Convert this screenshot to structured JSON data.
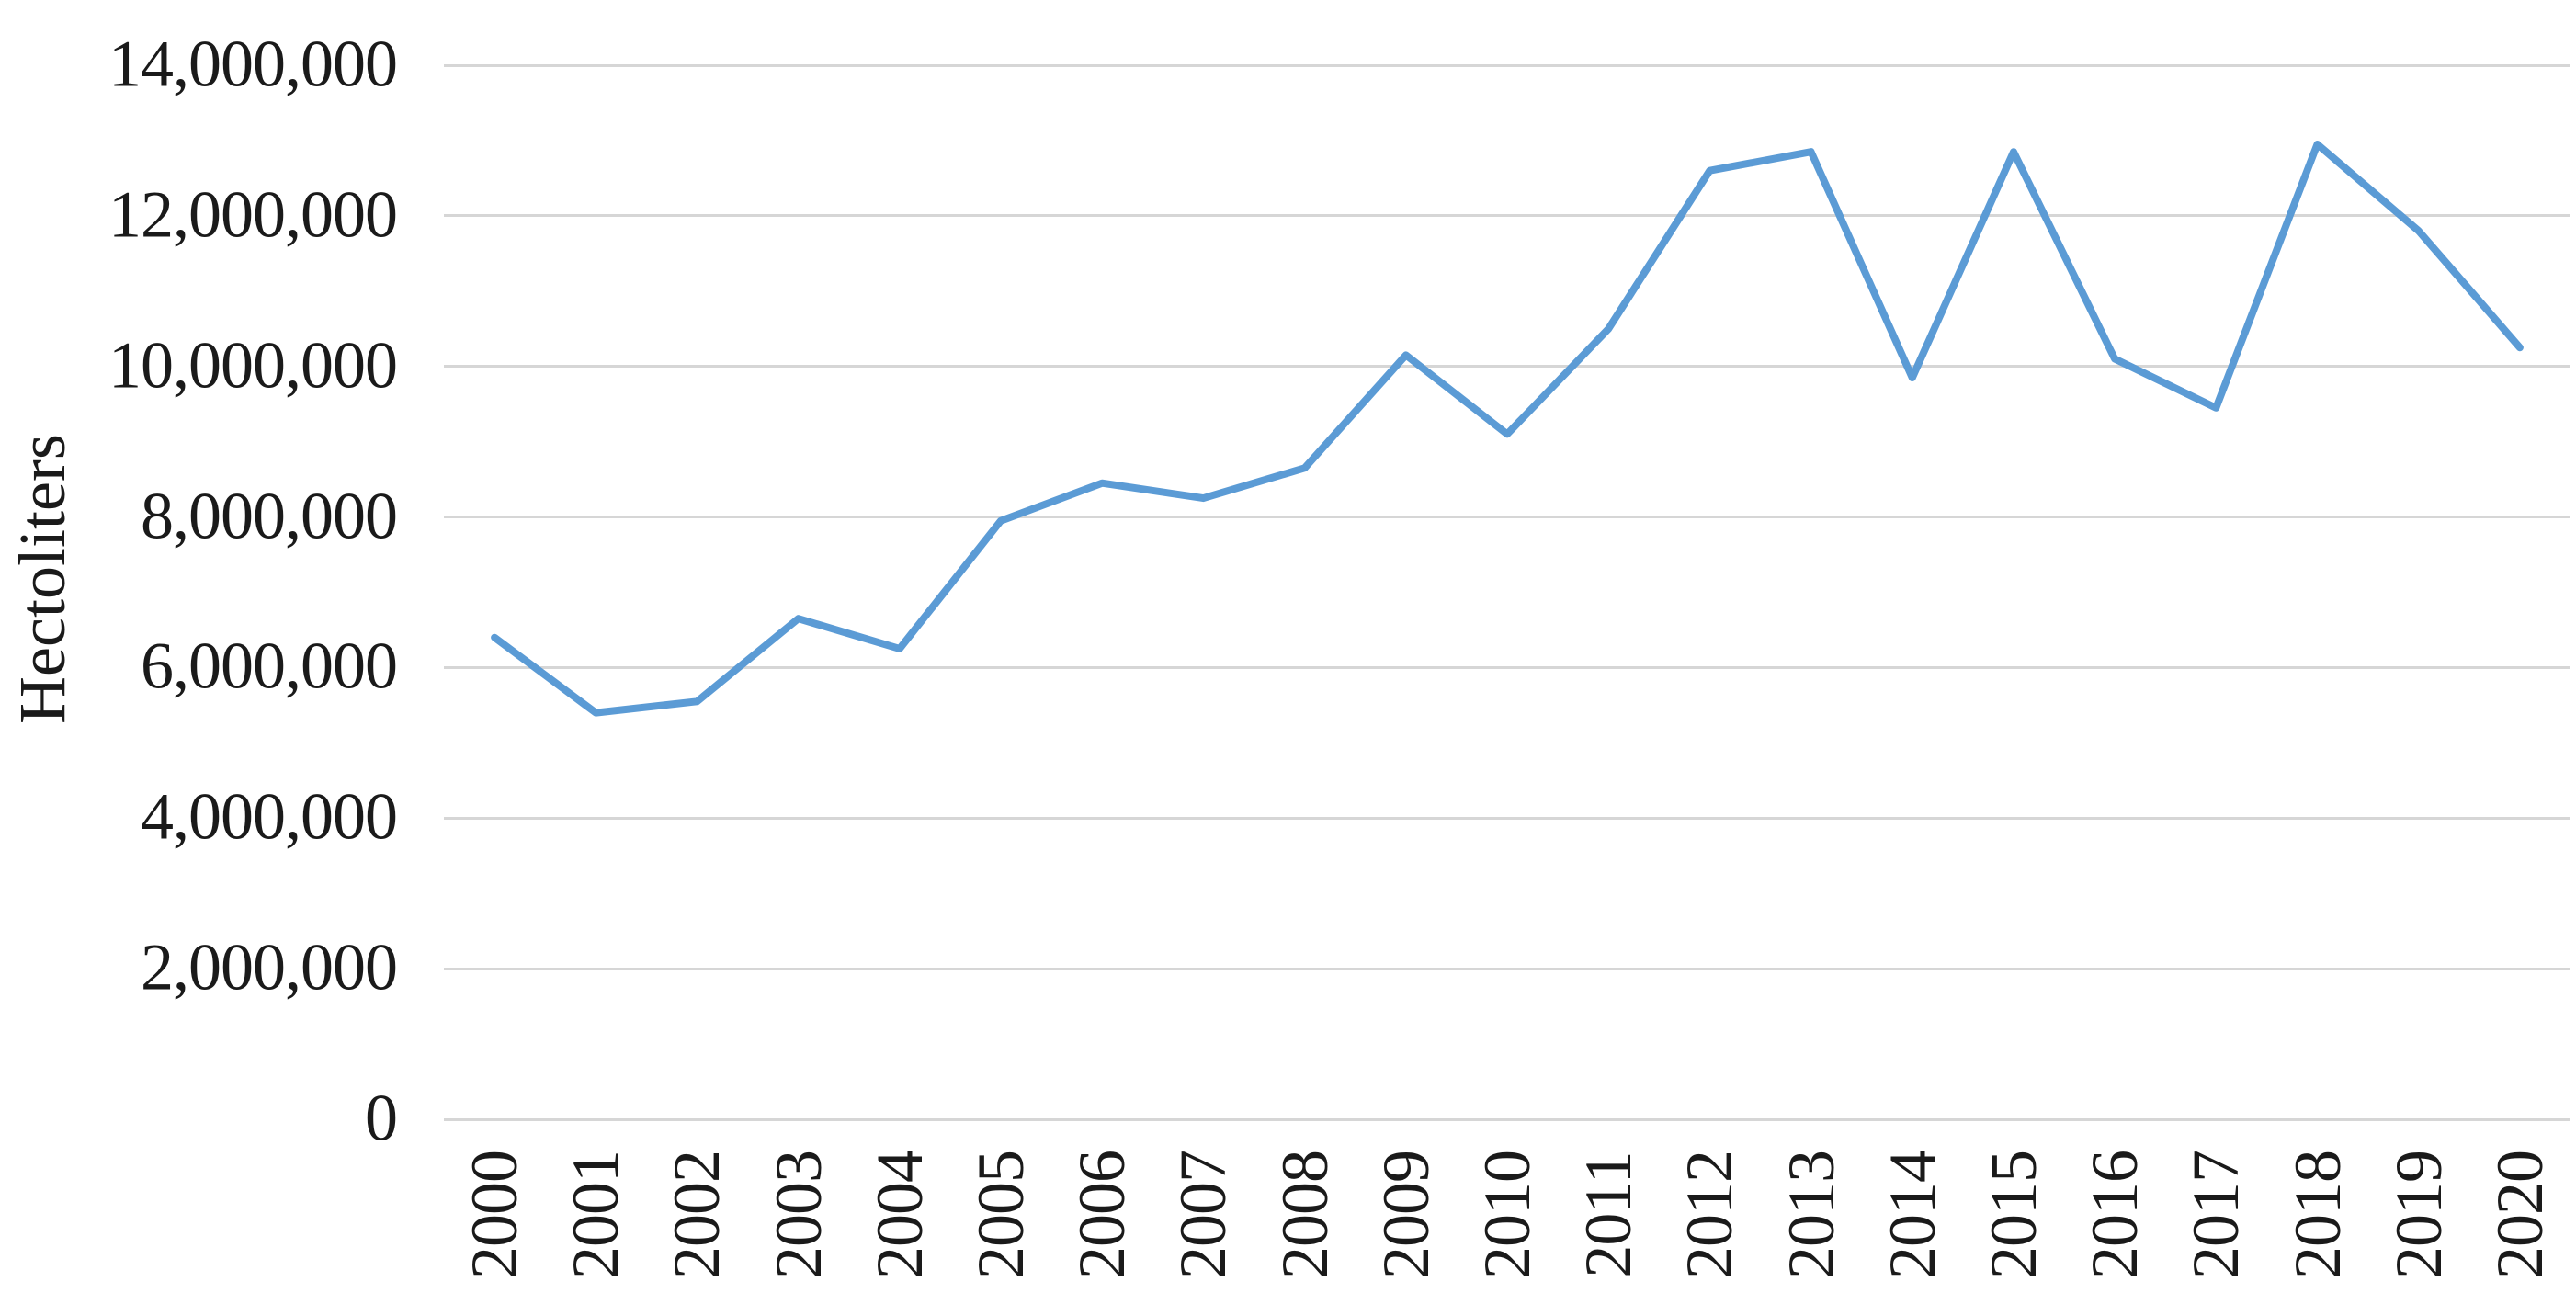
{
  "chart_data": {
    "type": "line",
    "title": "",
    "xlabel": "",
    "ylabel": "Hectoliters",
    "categories": [
      "2000",
      "2001",
      "2002",
      "2003",
      "2004",
      "2005",
      "2006",
      "2007",
      "2008",
      "2009",
      "2010",
      "2011",
      "2012",
      "2013",
      "2014",
      "2015",
      "2016",
      "2017",
      "2018",
      "2019",
      "2020"
    ],
    "series": [
      {
        "name": "Hectoliters",
        "values": [
          6400000,
          5400000,
          5550000,
          6650000,
          6250000,
          7950000,
          8450000,
          8250000,
          8650000,
          10150000,
          9100000,
          10500000,
          12600000,
          12850000,
          9850000,
          12850000,
          10100000,
          9450000,
          12950000,
          11800000,
          10250000
        ]
      }
    ],
    "y_axis": {
      "min": 0,
      "max": 14000000,
      "tick_interval": 2000000,
      "tick_labels": [
        "0",
        "2,000,000",
        "4,000,000",
        "6,000,000",
        "8,000,000",
        "10,000,000",
        "12,000,000",
        "14,000,000"
      ]
    },
    "legend": "none",
    "grid": "horizontal",
    "colors": {
      "line": "#5b9bd5",
      "gridline": "#d6d6d6",
      "text": "#1a1a1a",
      "background": "#ffffff"
    }
  }
}
